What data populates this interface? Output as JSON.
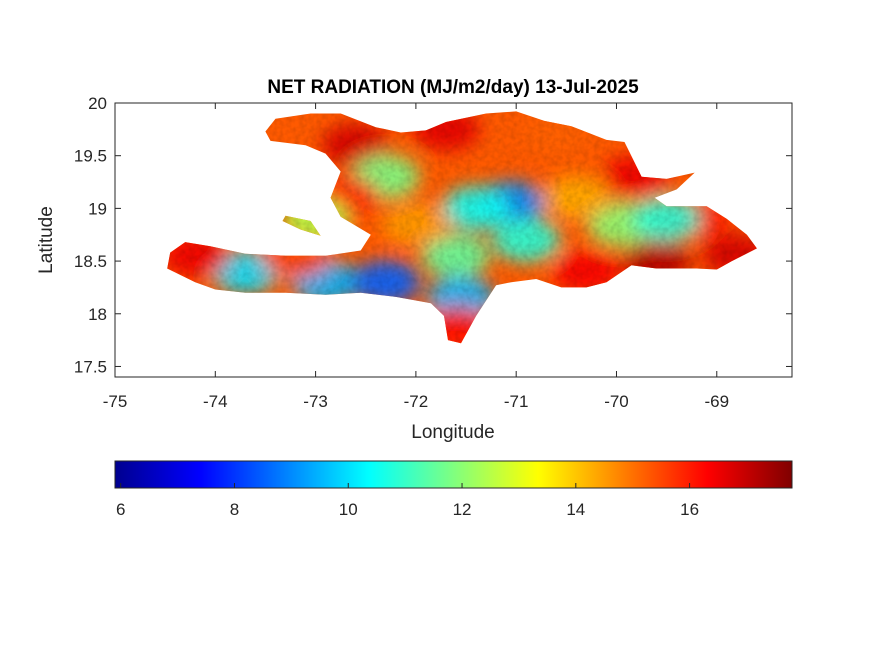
{
  "chart_data": {
    "type": "heatmap",
    "title": "NET RADIATION (MJ/m2/day) 13-Jul-2025",
    "xlabel": "Longitude",
    "ylabel": "Latitude",
    "xlim": [
      -75,
      -68.25
    ],
    "ylim": [
      17.4,
      20
    ],
    "x_ticks": [
      -75,
      -74,
      -73,
      -72,
      -71,
      -70,
      -69
    ],
    "x_tick_labels": [
      "-75",
      "-74",
      "-73",
      "-72",
      "-71",
      "-70",
      "-69"
    ],
    "y_ticks": [
      17.5,
      18,
      18.5,
      19,
      19.5,
      20
    ],
    "y_tick_labels": [
      "17.5",
      "18",
      "18.5",
      "19",
      "19.5",
      "20"
    ],
    "colormap": "jet",
    "clim": [
      5.9,
      17.8
    ],
    "colorbar": {
      "orientation": "horizontal",
      "ticks": [
        6,
        8,
        10,
        12,
        14,
        16
      ],
      "tick_labels": [
        "6",
        "8",
        "10",
        "12",
        "14",
        "16"
      ]
    },
    "grid": false,
    "region": "Hispaniola (Haiti and Dominican Republic)",
    "field_patches": [
      {
        "lon": -72.6,
        "lat": 19.6,
        "value": 16.8
      },
      {
        "lon": -71.7,
        "lat": 19.75,
        "value": 16.6
      },
      {
        "lon": -70.6,
        "lat": 19.7,
        "value": 15.2
      },
      {
        "lon": -69.8,
        "lat": 19.3,
        "value": 16.5
      },
      {
        "lon": -69.2,
        "lat": 18.9,
        "value": 16.0
      },
      {
        "lon": -68.8,
        "lat": 18.55,
        "value": 16.8
      },
      {
        "lon": -69.6,
        "lat": 18.5,
        "value": 17.2
      },
      {
        "lon": -70.3,
        "lat": 18.4,
        "value": 16.4
      },
      {
        "lon": -71.05,
        "lat": 19.05,
        "value": 9.0
      },
      {
        "lon": -71.4,
        "lat": 19.0,
        "value": 10.5
      },
      {
        "lon": -70.9,
        "lat": 18.7,
        "value": 10.8
      },
      {
        "lon": -71.6,
        "lat": 18.55,
        "value": 11.5
      },
      {
        "lon": -72.3,
        "lat": 19.3,
        "value": 11.8
      },
      {
        "lon": -72.0,
        "lat": 18.85,
        "value": 14.5
      },
      {
        "lon": -72.7,
        "lat": 19.1,
        "value": 15.8
      },
      {
        "lon": -73.7,
        "lat": 18.4,
        "value": 10.0
      },
      {
        "lon": -72.9,
        "lat": 18.3,
        "value": 9.5
      },
      {
        "lon": -72.3,
        "lat": 18.3,
        "value": 8.5
      },
      {
        "lon": -71.55,
        "lat": 18.15,
        "value": 9.5
      },
      {
        "lon": -74.2,
        "lat": 18.55,
        "value": 16.5
      },
      {
        "lon": -73.2,
        "lat": 18.55,
        "value": 15.5
      },
      {
        "lon": -71.6,
        "lat": 17.85,
        "value": 16.2
      },
      {
        "lon": -69.95,
        "lat": 18.85,
        "value": 12.0
      },
      {
        "lon": -69.5,
        "lat": 18.9,
        "value": 10.8
      },
      {
        "lon": -73.0,
        "lat": 18.9,
        "value": 12.5
      },
      {
        "lon": -70.4,
        "lat": 19.1,
        "value": 14.3
      }
    ]
  }
}
